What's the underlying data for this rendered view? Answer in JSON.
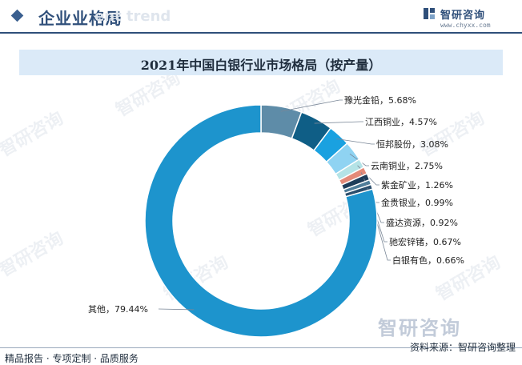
{
  "header": {
    "title": "企业业格局",
    "ghost_text": "ent trend"
  },
  "brand": {
    "name": "智研咨询",
    "url": "www.chyxx.com"
  },
  "watermark": {
    "text": "智研咨询"
  },
  "footer": {
    "left": "精品报告 · 专项定制 · 品质服务",
    "source": "资料来源：智研咨询整理"
  },
  "chart_data": {
    "type": "pie",
    "variant": "donut",
    "title": "2021年中国白银行业市场格局（按产量）",
    "legend": "none",
    "slices": [
      {
        "name": "豫光金铅",
        "value": 5.68,
        "label": "豫光金铅，5.68%",
        "color": "#5e8ca8"
      },
      {
        "name": "江西铜业",
        "value": 4.57,
        "label": "江西铜业，4.57%",
        "color": "#0f5e86"
      },
      {
        "name": "恒邦股份",
        "value": 3.08,
        "label": "恒邦股份，3.08%",
        "color": "#1aa1e0"
      },
      {
        "name": "云南铜业",
        "value": 2.75,
        "label": "云南铜业，2.75%",
        "color": "#8fd3f2"
      },
      {
        "name": "紫金矿业",
        "value": 1.26,
        "label": "紫金矿业，1.26%",
        "color": "#b4e3e6"
      },
      {
        "name": "金贵银业",
        "value": 0.99,
        "label": "金贵银业，0.99%",
        "color": "#e48a78"
      },
      {
        "name": "盛达资源",
        "value": 0.92,
        "label": "盛达资源，0.92%",
        "color": "#1e3d5a"
      },
      {
        "name": "驰宏锌锗",
        "value": 0.67,
        "label": "驰宏锌锗，0.67%",
        "color": "#4f7d9a"
      },
      {
        "name": "白银有色",
        "value": 0.66,
        "label": "白银有色，0.66%",
        "color": "#2b4f6e"
      },
      {
        "name": "其他",
        "value": 79.44,
        "label": "其他，79.44%",
        "color": "#1d94cd"
      }
    ]
  }
}
